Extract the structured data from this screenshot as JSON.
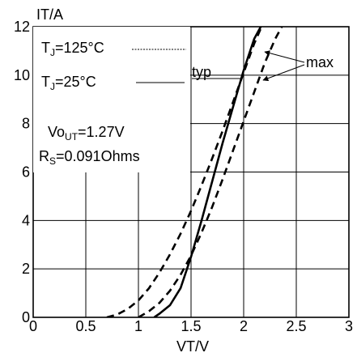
{
  "chart_data": {
    "type": "line",
    "title": "",
    "ylabel": "IT/A",
    "xlabel": "VT/V",
    "xlim": [
      0,
      3
    ],
    "ylim": [
      0,
      12
    ],
    "grid": true,
    "x_ticks": [
      "0",
      "0.5",
      "1",
      "1.5",
      "2",
      "2.5",
      "3"
    ],
    "y_ticks": [
      "0",
      "2",
      "4",
      "6",
      "8",
      "10",
      "12"
    ],
    "legend": {
      "placement": "top-left",
      "entries": [
        {
          "label_main": "T",
          "label_sub": "J",
          "label_rest": "=125°C",
          "style": "dashed"
        },
        {
          "label_main": "T",
          "label_sub": "J",
          "label_rest": "=25°C",
          "style": "solid"
        }
      ]
    },
    "params": {
      "vout": {
        "main": "Vo",
        "sub": "UT",
        "rest": "=1.27V"
      },
      "rs": {
        "main": "R",
        "sub": "S",
        "rest": "=0.091Ohms"
      }
    },
    "annotations": {
      "typ": "typ",
      "max": "max"
    },
    "series": [
      {
        "style": "dashed",
        "x": [
          0.7,
          0.8,
          0.9,
          1.0,
          1.1,
          1.2,
          1.3,
          1.4,
          1.5,
          1.6,
          1.7,
          1.8,
          1.9,
          2.0,
          2.1,
          2.2
        ],
        "y": [
          0.0,
          0.12,
          0.35,
          0.7,
          1.2,
          1.85,
          2.6,
          3.45,
          4.4,
          5.45,
          6.55,
          7.7,
          8.9,
          10.1,
          11.3,
          12.3
        ]
      },
      {
        "style": "solid",
        "x": [
          1.15,
          1.2,
          1.3,
          1.4,
          1.5,
          1.6,
          1.7,
          1.8,
          1.9,
          2.0,
          2.1,
          2.2
        ],
        "y": [
          0.0,
          0.15,
          0.5,
          1.2,
          2.5,
          4.0,
          5.6,
          7.2,
          8.7,
          10.2,
          11.5,
          12.3
        ]
      },
      {
        "style": "dashed",
        "x": [
          1.0,
          1.1,
          1.2,
          1.3,
          1.4,
          1.5,
          1.6,
          1.7,
          1.8,
          1.9,
          2.0,
          2.1,
          2.2,
          2.3,
          2.4
        ],
        "y": [
          0.0,
          0.25,
          0.6,
          1.1,
          1.75,
          2.55,
          3.5,
          4.55,
          5.7,
          6.9,
          8.1,
          9.3,
          10.5,
          11.5,
          12.3
        ]
      }
    ]
  }
}
